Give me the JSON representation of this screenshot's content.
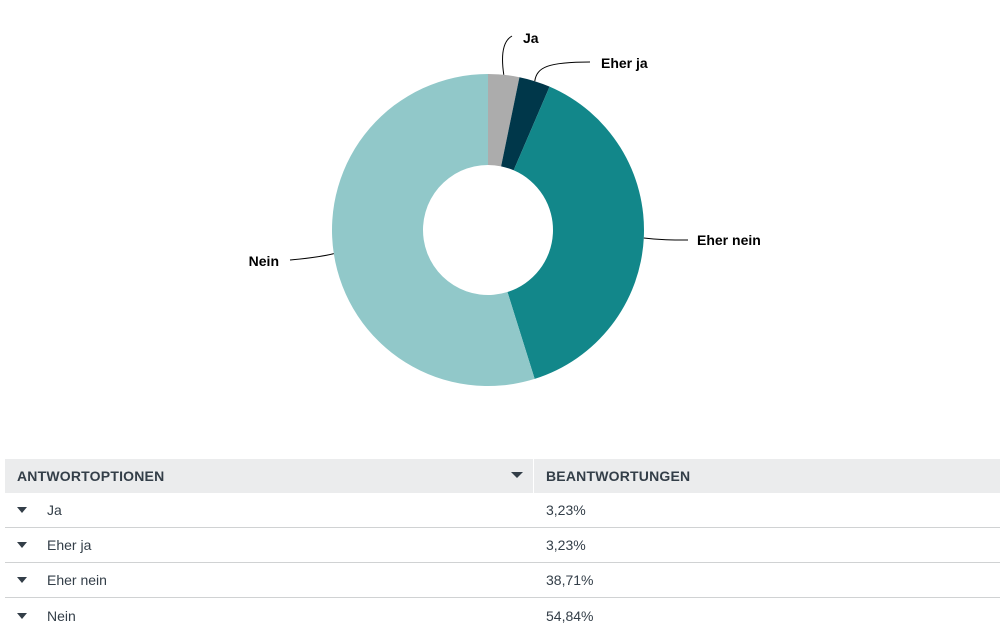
{
  "chart_data": {
    "type": "pie",
    "variant": "donut",
    "categories": [
      "Ja",
      "Eher ja",
      "Eher nein",
      "Nein"
    ],
    "values": [
      3.23,
      3.23,
      38.71,
      54.84
    ],
    "unit": "%",
    "colors": [
      "#acacac",
      "#00374a",
      "#12878a",
      "#91c8c9"
    ],
    "title": "",
    "legend": "none (slice labels with leader lines)"
  },
  "table": {
    "header": {
      "col1": "ANTWORTOPTIONEN",
      "col2": "BEANTWORTUNGEN"
    },
    "rows": [
      {
        "option": "Ja",
        "value": "3,23%"
      },
      {
        "option": "Eher ja",
        "value": "3,23%"
      },
      {
        "option": "Eher nein",
        "value": "38,71%"
      },
      {
        "option": "Nein",
        "value": "54,84%"
      }
    ]
  }
}
